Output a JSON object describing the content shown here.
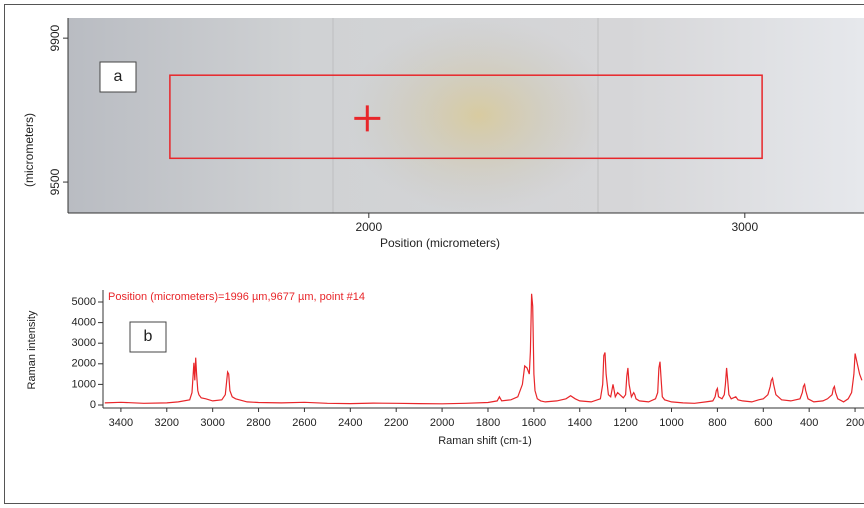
{
  "chart_data": [
    {
      "type": "image",
      "label": "a",
      "xlabel": "Position (micrometers)",
      "ylabel": "(micrometers)",
      "xlim": [
        1200,
        3317
      ],
      "ylim": [
        9414,
        9956
      ],
      "xticks": [
        2000,
        3000
      ],
      "yticks": [
        9500,
        9900
      ],
      "region": {
        "x": [
          1471,
          3046
        ],
        "y": [
          9566,
          9797
        ],
        "color": "#e8262a"
      },
      "marker": {
        "x": 1996,
        "y": 9677,
        "color": "#e8262a"
      }
    },
    {
      "type": "line",
      "label": "b",
      "annotation": "Position (micrometers)=1996 µm,9677 µm, point #14",
      "xlabel": "Raman shift (cm-1)",
      "ylabel": "Raman intensity",
      "color": "#e8262a",
      "xlim": [
        3478,
        161
      ],
      "ylim": [
        -146,
        5583
      ],
      "xticks": [
        3400,
        3200,
        3000,
        2800,
        2600,
        2400,
        2200,
        2000,
        1800,
        1600,
        1400,
        1200,
        1000,
        800,
        600,
        400,
        200
      ],
      "yticks": [
        0,
        1000,
        2000,
        3000,
        4000,
        5000
      ],
      "x": [
        3470,
        3400,
        3300,
        3200,
        3150,
        3100,
        3090,
        3082,
        3078,
        3074,
        3070,
        3065,
        3060,
        3050,
        3030,
        3000,
        2960,
        2945,
        2935,
        2930,
        2925,
        2915,
        2900,
        2850,
        2800,
        2700,
        2600,
        2500,
        2400,
        2300,
        2200,
        2100,
        2000,
        1900,
        1800,
        1760,
        1750,
        1740,
        1700,
        1670,
        1650,
        1640,
        1630,
        1620,
        1615,
        1610,
        1605,
        1600,
        1595,
        1585,
        1570,
        1550,
        1500,
        1460,
        1440,
        1420,
        1400,
        1350,
        1310,
        1300,
        1295,
        1290,
        1285,
        1275,
        1265,
        1255,
        1250,
        1245,
        1235,
        1210,
        1200,
        1195,
        1190,
        1185,
        1175,
        1165,
        1160,
        1155,
        1140,
        1100,
        1070,
        1060,
        1055,
        1050,
        1045,
        1040,
        1030,
        1000,
        950,
        900,
        850,
        820,
        810,
        805,
        800,
        795,
        780,
        770,
        765,
        760,
        755,
        750,
        740,
        730,
        720,
        710,
        690,
        650,
        620,
        600,
        580,
        570,
        565,
        560,
        555,
        545,
        520,
        480,
        440,
        430,
        425,
        420,
        415,
        405,
        380,
        340,
        320,
        300,
        295,
        290,
        285,
        275,
        250,
        230,
        215,
        205,
        200,
        190,
        180,
        170
      ],
      "values": [
        100,
        130,
        80,
        100,
        150,
        250,
        600,
        2050,
        1200,
        2300,
        1500,
        700,
        500,
        350,
        300,
        200,
        250,
        500,
        1600,
        1500,
        700,
        400,
        300,
        150,
        120,
        100,
        130,
        80,
        70,
        90,
        80,
        70,
        60,
        80,
        120,
        200,
        400,
        200,
        250,
        400,
        1000,
        1900,
        1800,
        1500,
        2600,
        5400,
        4800,
        1500,
        700,
        300,
        200,
        150,
        200,
        300,
        450,
        300,
        200,
        150,
        300,
        1000,
        2400,
        2550,
        1500,
        500,
        400,
        1000,
        700,
        400,
        600,
        350,
        500,
        1400,
        1800,
        1000,
        400,
        600,
        500,
        300,
        200,
        150,
        300,
        600,
        1800,
        2100,
        1200,
        400,
        250,
        150,
        100,
        80,
        150,
        200,
        400,
        700,
        800,
        400,
        300,
        500,
        1000,
        1800,
        1200,
        500,
        300,
        350,
        400,
        250,
        200,
        150,
        250,
        300,
        500,
        900,
        1200,
        1300,
        1000,
        500,
        250,
        200,
        300,
        600,
        900,
        1000,
        700,
        300,
        150,
        200,
        300,
        500,
        800,
        900,
        600,
        300,
        150,
        300,
        600,
        1500,
        2500,
        2000,
        1500,
        1200
      ]
    }
  ]
}
